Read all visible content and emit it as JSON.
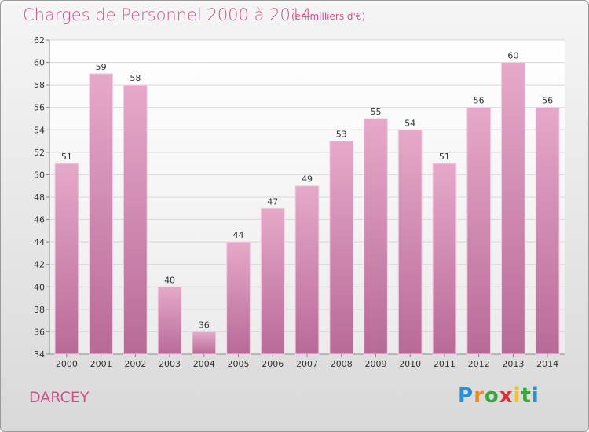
{
  "title": "Charges de Personnel 2000 à 2014",
  "subtitle": "(en milliers d'€)",
  "commune": "DARCEY",
  "logo": {
    "letters": [
      "P",
      "r",
      "o",
      "x",
      "i",
      "t",
      "i"
    ],
    "colors": [
      "#2a8fd6",
      "#f08a1c",
      "#3aa63a",
      "#e52f2f",
      "#f0c419",
      "#3aa63a",
      "#2a8fd6"
    ]
  },
  "colors": {
    "bar": "#d88cb4",
    "accent": "#d0508c"
  },
  "chart_data": {
    "type": "bar",
    "title": "Charges de Personnel 2000 à 2014",
    "subtitle": "(en milliers d'€)",
    "categories": [
      "2000",
      "2001",
      "2002",
      "2003",
      "2004",
      "2005",
      "2006",
      "2007",
      "2008",
      "2009",
      "2010",
      "2011",
      "2012",
      "2013",
      "2014"
    ],
    "values": [
      51,
      59,
      58,
      40,
      36,
      44,
      47,
      49,
      53,
      55,
      54,
      51,
      56,
      60,
      56
    ],
    "ylim": [
      34,
      62
    ],
    "yticks": [
      34,
      36,
      38,
      40,
      42,
      44,
      46,
      48,
      50,
      52,
      54,
      56,
      58,
      60,
      62
    ],
    "grid": true,
    "xlabel": "",
    "ylabel": ""
  }
}
